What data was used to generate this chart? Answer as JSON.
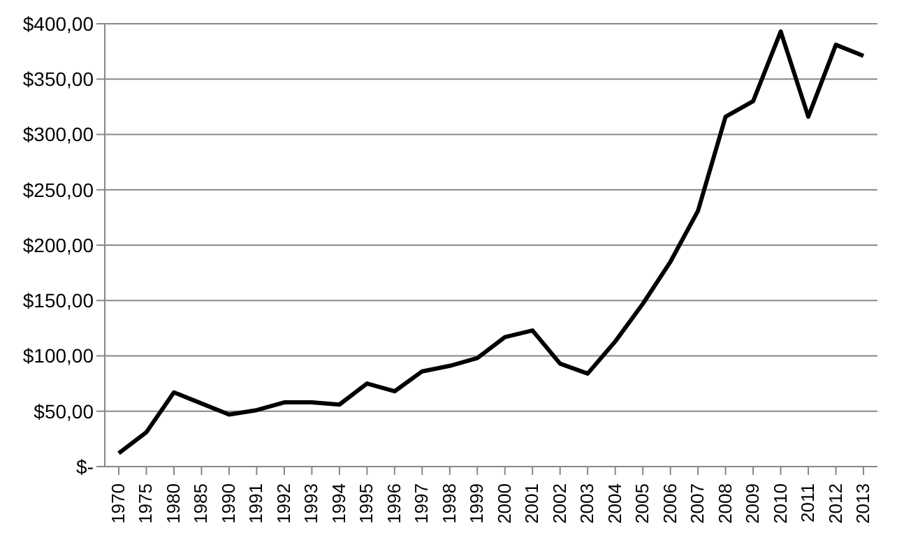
{
  "chart_data": {
    "type": "line",
    "categories": [
      "1970",
      "1975",
      "1980",
      "1985",
      "1990",
      "1991",
      "1992",
      "1993",
      "1994",
      "1995",
      "1996",
      "1997",
      "1998",
      "1999",
      "2000",
      "2001",
      "2002",
      "2003",
      "2004",
      "2005",
      "2006",
      "2007",
      "2008",
      "2009",
      "2010",
      "2011",
      "2012",
      "2013"
    ],
    "series": [
      {
        "color": "#000000",
        "values": [
          12,
          31,
          67,
          57,
          47,
          51,
          58,
          58,
          56,
          75,
          68,
          86,
          91,
          98,
          117,
          123,
          93,
          84,
          113,
          147,
          185,
          231,
          316,
          330,
          393,
          316,
          381,
          371
        ]
      }
    ],
    "ylim": [
      0,
      400
    ],
    "yticks": [
      {
        "value": 0,
        "label": "$-"
      },
      {
        "value": 50,
        "label": "$50,00"
      },
      {
        "value": 100,
        "label": "$100,00"
      },
      {
        "value": 150,
        "label": "$150,00"
      },
      {
        "value": 200,
        "label": "$200,00"
      },
      {
        "value": 250,
        "label": "$250,00"
      },
      {
        "value": 300,
        "label": "$300,00"
      },
      {
        "value": 350,
        "label": "$350,00"
      },
      {
        "value": 400,
        "label": "$400,00"
      }
    ],
    "grid": "y",
    "marker": "none",
    "line_style": "solid"
  }
}
